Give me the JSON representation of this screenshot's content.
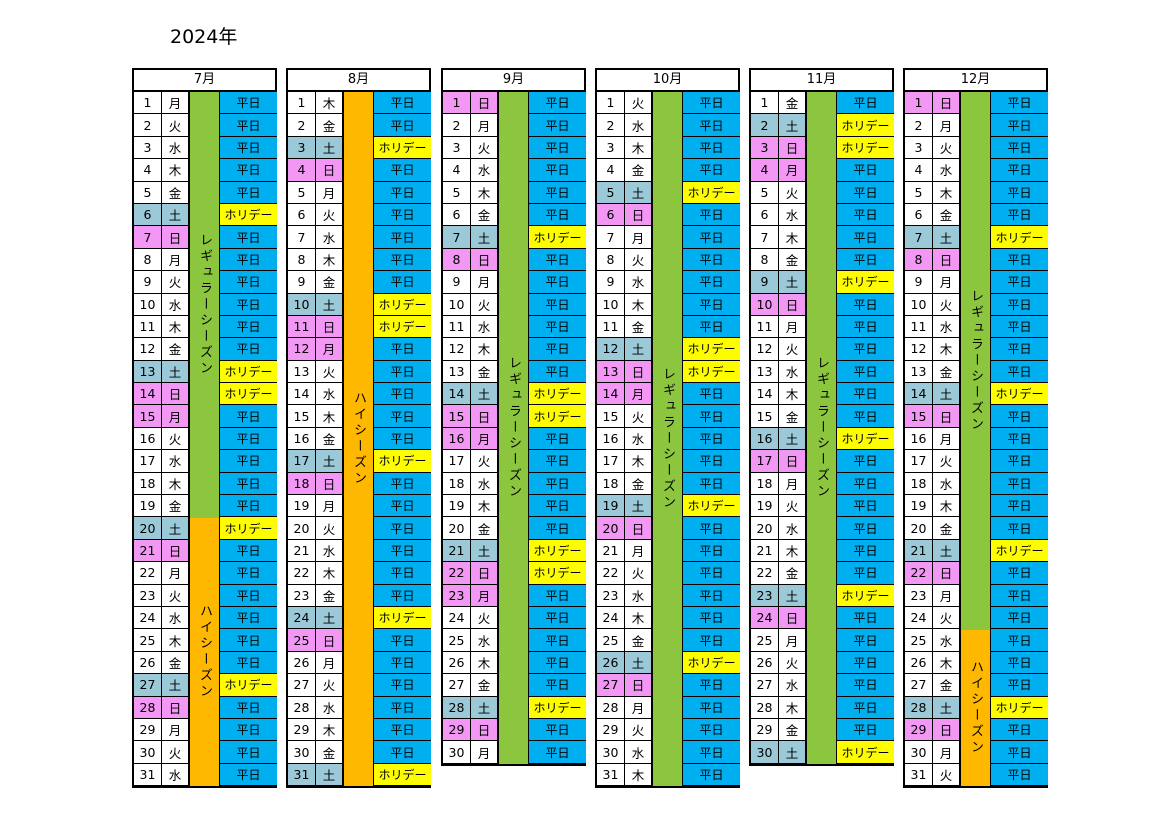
{
  "title": "2024年",
  "labels": {
    "weekday": "平日",
    "holiday": "ホリデー",
    "regular": "レギュラーシーズン",
    "high": "ハイシーズン"
  },
  "colors": {
    "weekday": "#00aff0",
    "holiday": "#fdfd00",
    "regular_season": "#8cc63f",
    "high_season": "#ffb800",
    "sunday_cell": "#f297f4",
    "saturday_cell": "#9bc9d8"
  },
  "months": [
    {
      "name": "7月",
      "days": 31,
      "start_weekday": 1,
      "holidays": [
        15
      ],
      "seasons": [
        {
          "type": "regular",
          "from": 1,
          "to": 19
        },
        {
          "type": "high",
          "from": 20,
          "to": 31
        }
      ]
    },
    {
      "name": "8月",
      "days": 31,
      "start_weekday": 4,
      "holidays": [
        12
      ],
      "seasons": [
        {
          "type": "high",
          "from": 1,
          "to": 31
        }
      ]
    },
    {
      "name": "9月",
      "days": 30,
      "start_weekday": 0,
      "holidays": [
        16,
        23
      ],
      "seasons": [
        {
          "type": "regular",
          "from": 1,
          "to": 30
        }
      ]
    },
    {
      "name": "10月",
      "days": 31,
      "start_weekday": 2,
      "holidays": [
        14
      ],
      "seasons": [
        {
          "type": "regular",
          "from": 1,
          "to": 31
        }
      ]
    },
    {
      "name": "11月",
      "days": 30,
      "start_weekday": 5,
      "holidays": [
        3,
        4
      ],
      "seasons": [
        {
          "type": "regular",
          "from": 1,
          "to": 30
        }
      ]
    },
    {
      "name": "12月",
      "days": 31,
      "start_weekday": 0,
      "holidays": [],
      "seasons": [
        {
          "type": "regular",
          "from": 1,
          "to": 24
        },
        {
          "type": "high",
          "from": 25,
          "to": 31
        }
      ]
    }
  ],
  "weekday_names": [
    "日",
    "月",
    "火",
    "水",
    "木",
    "金",
    "土"
  ]
}
